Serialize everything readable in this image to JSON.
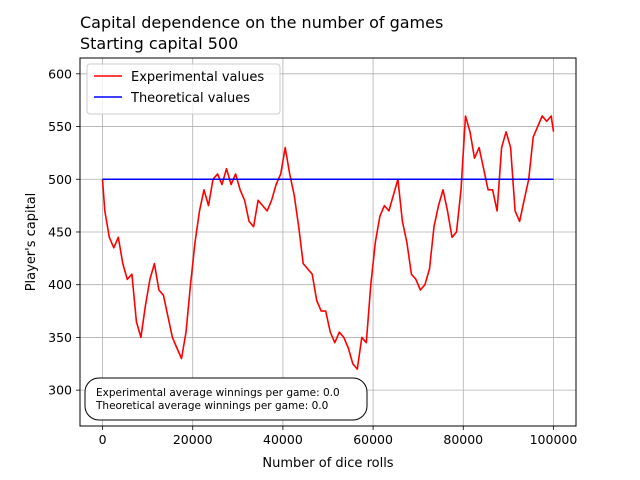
{
  "chart_data": {
    "type": "line",
    "title": "Capital dependence on the number of games",
    "subtitle": "Starting capital 500",
    "xlabel": "Number of dice rolls",
    "ylabel": "Player's capital",
    "xlim": [
      -5000,
      105000
    ],
    "ylim": [
      266,
      615
    ],
    "xticks": [
      0,
      20000,
      40000,
      60000,
      80000,
      100000
    ],
    "xtick_labels": [
      "0",
      "20000",
      "40000",
      "60000",
      "80000",
      "100000"
    ],
    "yticks": [
      300,
      350,
      400,
      450,
      500,
      550,
      600
    ],
    "ytick_labels": [
      "300",
      "350",
      "400",
      "450",
      "500",
      "550",
      "600"
    ],
    "grid": true,
    "legend_position": "top-left",
    "series": [
      {
        "name": "Experimental values",
        "color": "#ff0000",
        "x": [
          0,
          500,
          1500,
          2500,
          3500,
          4500,
          5500,
          6500,
          7500,
          8500,
          9500,
          10500,
          11500,
          12500,
          13500,
          14500,
          15500,
          16500,
          17500,
          18500,
          19500,
          20500,
          21500,
          22500,
          23500,
          24500,
          25500,
          26500,
          27500,
          28500,
          29500,
          30500,
          31500,
          32500,
          33500,
          34500,
          35500,
          36500,
          37500,
          38500,
          39500,
          40500,
          41500,
          42500,
          43500,
          44500,
          45500,
          46500,
          47500,
          48500,
          49500,
          50500,
          51500,
          52500,
          53500,
          54500,
          55500,
          56500,
          57500,
          58500,
          59500,
          60500,
          61500,
          62500,
          63500,
          64500,
          65500,
          66500,
          67500,
          68500,
          69500,
          70500,
          71500,
          72500,
          73500,
          74500,
          75500,
          76500,
          77500,
          78500,
          79500,
          80500,
          81500,
          82500,
          83500,
          84500,
          85500,
          86500,
          87500,
          88500,
          89500,
          90500,
          91500,
          92500,
          93500,
          94500,
          95500,
          96500,
          97500,
          98500,
          99500,
          100000
        ],
        "y": [
          500,
          470,
          445,
          435,
          445,
          420,
          405,
          410,
          365,
          350,
          380,
          405,
          420,
          395,
          390,
          370,
          350,
          340,
          330,
          355,
          400,
          440,
          470,
          490,
          475,
          500,
          505,
          495,
          510,
          495,
          505,
          490,
          480,
          460,
          455,
          480,
          475,
          470,
          480,
          495,
          505,
          530,
          505,
          485,
          455,
          420,
          415,
          410,
          385,
          375,
          375,
          355,
          345,
          355,
          350,
          340,
          325,
          320,
          350,
          345,
          400,
          440,
          465,
          475,
          470,
          485,
          500,
          460,
          440,
          410,
          405,
          395,
          400,
          415,
          455,
          475,
          490,
          470,
          445,
          450,
          490,
          560,
          545,
          520,
          530,
          510,
          490,
          490,
          470,
          530,
          545,
          530,
          470,
          460,
          480,
          500,
          540,
          550,
          560,
          555,
          560,
          545
        ]
      },
      {
        "name": "Theoretical values",
        "color": "#0000ff",
        "x": [
          0,
          100000
        ],
        "y": [
          500,
          500
        ]
      }
    ],
    "annotation": {
      "line1": "Experimental average winnings per game: 0.0",
      "line2": "Theoretical average winnings per game: 0.0"
    }
  }
}
